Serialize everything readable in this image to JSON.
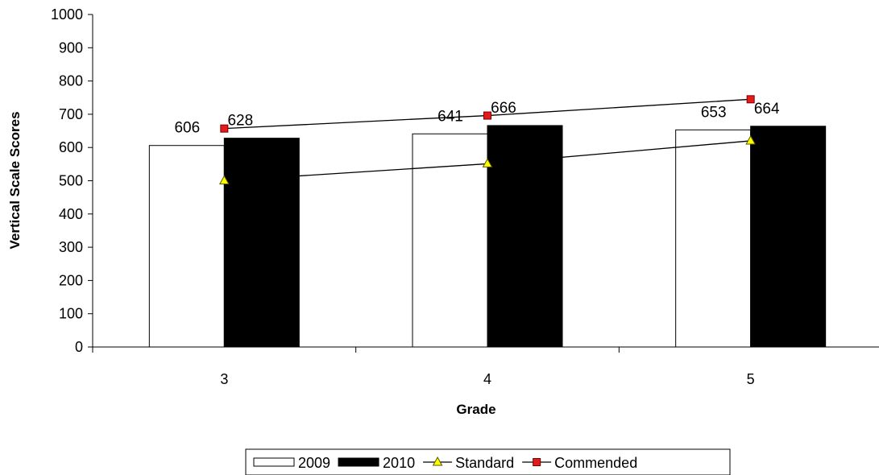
{
  "chart_data": {
    "type": "bar",
    "title": "",
    "xlabel": "Grade",
    "ylabel": "Vertical Scale Scores",
    "categories": [
      "3",
      "4",
      "5"
    ],
    "ylim": [
      0,
      1000
    ],
    "yticks": [
      0,
      100,
      200,
      300,
      400,
      500,
      600,
      700,
      800,
      900,
      1000
    ],
    "grid": false,
    "legend_position": "bottom",
    "series": [
      {
        "name": "2009",
        "kind": "bar",
        "values": [
          606,
          641,
          653
        ],
        "color": "#ffffff",
        "data_labels": [
          "606",
          "641",
          "653"
        ]
      },
      {
        "name": "2010",
        "kind": "bar",
        "values": [
          628,
          666,
          664
        ],
        "color": "#000000",
        "data_labels": [
          "628",
          "666",
          "664"
        ]
      },
      {
        "name": "Standard",
        "kind": "line",
        "marker": "triangle",
        "values": [
          500,
          551,
          620
        ],
        "color": "#ffff00"
      },
      {
        "name": "Commended",
        "kind": "line",
        "marker": "square",
        "values": [
          657,
          696,
          745
        ],
        "color": "#e31b1b"
      }
    ]
  }
}
